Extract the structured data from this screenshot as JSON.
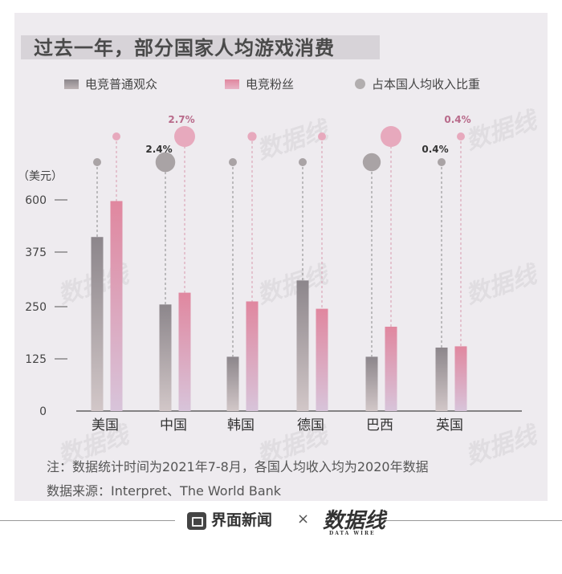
{
  "title": "过去一年，部分国家人均游戏消费",
  "legend": {
    "ordinary": "电竞普通观众",
    "fans": "电竞粉丝",
    "income_ratio": "占本国人均收入比重"
  },
  "y_unit": "（美元）",
  "colors": {
    "ordinary_top": "#8c868b",
    "ordinary_bottom": "#d2c7c8",
    "fans_top": "#e0879f",
    "fans_bottom": "#d8c4da",
    "bubble_ordinary": "#a9a3a5",
    "bubble_fans": "#e7a9bd",
    "label_ordinary": "#333333",
    "label_fans": "#b86a8a"
  },
  "chart_data": {
    "type": "bar",
    "categories": [
      "美国",
      "中国",
      "韩国",
      "德国",
      "巴西",
      "英国"
    ],
    "series": [
      {
        "name": "电竞普通观众",
        "values": [
          440,
          255,
          130,
          310,
          130,
          152
        ]
      },
      {
        "name": "电竞粉丝",
        "values": [
          595,
          282,
          262,
          245,
          202,
          155
        ]
      }
    ],
    "income_ratio_bubbles": {
      "ordinary": [
        0.3,
        2.4,
        0.2,
        0.3,
        2.0,
        0.4
      ],
      "fans": [
        0.4,
        2.7,
        0.5,
        0.3,
        2.7,
        0.4
      ]
    },
    "bubble_labels": {
      "ordinary": [
        "",
        "2.4%",
        "",
        "",
        "",
        "0.4%"
      ],
      "fans": [
        "",
        "2.7%",
        "",
        "",
        "",
        "0.4%"
      ]
    },
    "yticks": [
      "0",
      "125",
      "250",
      "375",
      "600"
    ],
    "ytick_values": [
      0,
      125,
      250,
      375,
      600
    ],
    "ylabel": "（美元）"
  },
  "notes": {
    "note": "注：数据统计时间为2021年7-8月，各国人均收入均为2020年数据",
    "source": "数据来源：Interpret、The World Bank"
  },
  "footer": {
    "brand": "界面新闻",
    "cross": "×",
    "logo_text": "数据线",
    "logo_sub": "DATA WIRE"
  }
}
